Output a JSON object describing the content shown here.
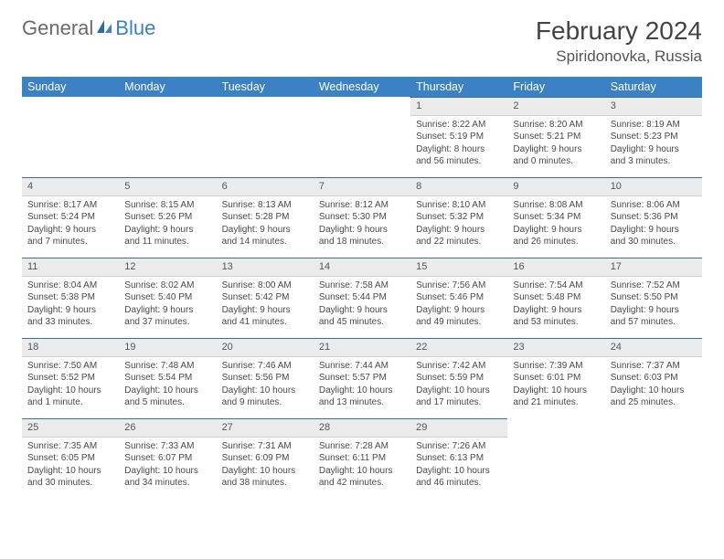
{
  "brand": {
    "part1": "General",
    "part2": "Blue"
  },
  "title": "February 2024",
  "location": "Spiridonovka, Russia",
  "colors": {
    "header_bg": "#3b82c4",
    "header_text": "#ffffff",
    "daynum_bg": "#ebebeb",
    "daynum_border_top": "#3b6fa0",
    "body_text": "#4a4a4a"
  },
  "weekdays": [
    "Sunday",
    "Monday",
    "Tuesday",
    "Wednesday",
    "Thursday",
    "Friday",
    "Saturday"
  ],
  "weeks": [
    [
      null,
      null,
      null,
      null,
      {
        "n": "1",
        "sunrise": "Sunrise: 8:22 AM",
        "sunset": "Sunset: 5:19 PM",
        "day1": "Daylight: 8 hours",
        "day2": "and 56 minutes."
      },
      {
        "n": "2",
        "sunrise": "Sunrise: 8:20 AM",
        "sunset": "Sunset: 5:21 PM",
        "day1": "Daylight: 9 hours",
        "day2": "and 0 minutes."
      },
      {
        "n": "3",
        "sunrise": "Sunrise: 8:19 AM",
        "sunset": "Sunset: 5:23 PM",
        "day1": "Daylight: 9 hours",
        "day2": "and 3 minutes."
      }
    ],
    [
      {
        "n": "4",
        "sunrise": "Sunrise: 8:17 AM",
        "sunset": "Sunset: 5:24 PM",
        "day1": "Daylight: 9 hours",
        "day2": "and 7 minutes."
      },
      {
        "n": "5",
        "sunrise": "Sunrise: 8:15 AM",
        "sunset": "Sunset: 5:26 PM",
        "day1": "Daylight: 9 hours",
        "day2": "and 11 minutes."
      },
      {
        "n": "6",
        "sunrise": "Sunrise: 8:13 AM",
        "sunset": "Sunset: 5:28 PM",
        "day1": "Daylight: 9 hours",
        "day2": "and 14 minutes."
      },
      {
        "n": "7",
        "sunrise": "Sunrise: 8:12 AM",
        "sunset": "Sunset: 5:30 PM",
        "day1": "Daylight: 9 hours",
        "day2": "and 18 minutes."
      },
      {
        "n": "8",
        "sunrise": "Sunrise: 8:10 AM",
        "sunset": "Sunset: 5:32 PM",
        "day1": "Daylight: 9 hours",
        "day2": "and 22 minutes."
      },
      {
        "n": "9",
        "sunrise": "Sunrise: 8:08 AM",
        "sunset": "Sunset: 5:34 PM",
        "day1": "Daylight: 9 hours",
        "day2": "and 26 minutes."
      },
      {
        "n": "10",
        "sunrise": "Sunrise: 8:06 AM",
        "sunset": "Sunset: 5:36 PM",
        "day1": "Daylight: 9 hours",
        "day2": "and 30 minutes."
      }
    ],
    [
      {
        "n": "11",
        "sunrise": "Sunrise: 8:04 AM",
        "sunset": "Sunset: 5:38 PM",
        "day1": "Daylight: 9 hours",
        "day2": "and 33 minutes."
      },
      {
        "n": "12",
        "sunrise": "Sunrise: 8:02 AM",
        "sunset": "Sunset: 5:40 PM",
        "day1": "Daylight: 9 hours",
        "day2": "and 37 minutes."
      },
      {
        "n": "13",
        "sunrise": "Sunrise: 8:00 AM",
        "sunset": "Sunset: 5:42 PM",
        "day1": "Daylight: 9 hours",
        "day2": "and 41 minutes."
      },
      {
        "n": "14",
        "sunrise": "Sunrise: 7:58 AM",
        "sunset": "Sunset: 5:44 PM",
        "day1": "Daylight: 9 hours",
        "day2": "and 45 minutes."
      },
      {
        "n": "15",
        "sunrise": "Sunrise: 7:56 AM",
        "sunset": "Sunset: 5:46 PM",
        "day1": "Daylight: 9 hours",
        "day2": "and 49 minutes."
      },
      {
        "n": "16",
        "sunrise": "Sunrise: 7:54 AM",
        "sunset": "Sunset: 5:48 PM",
        "day1": "Daylight: 9 hours",
        "day2": "and 53 minutes."
      },
      {
        "n": "17",
        "sunrise": "Sunrise: 7:52 AM",
        "sunset": "Sunset: 5:50 PM",
        "day1": "Daylight: 9 hours",
        "day2": "and 57 minutes."
      }
    ],
    [
      {
        "n": "18",
        "sunrise": "Sunrise: 7:50 AM",
        "sunset": "Sunset: 5:52 PM",
        "day1": "Daylight: 10 hours",
        "day2": "and 1 minute."
      },
      {
        "n": "19",
        "sunrise": "Sunrise: 7:48 AM",
        "sunset": "Sunset: 5:54 PM",
        "day1": "Daylight: 10 hours",
        "day2": "and 5 minutes."
      },
      {
        "n": "20",
        "sunrise": "Sunrise: 7:46 AM",
        "sunset": "Sunset: 5:56 PM",
        "day1": "Daylight: 10 hours",
        "day2": "and 9 minutes."
      },
      {
        "n": "21",
        "sunrise": "Sunrise: 7:44 AM",
        "sunset": "Sunset: 5:57 PM",
        "day1": "Daylight: 10 hours",
        "day2": "and 13 minutes."
      },
      {
        "n": "22",
        "sunrise": "Sunrise: 7:42 AM",
        "sunset": "Sunset: 5:59 PM",
        "day1": "Daylight: 10 hours",
        "day2": "and 17 minutes."
      },
      {
        "n": "23",
        "sunrise": "Sunrise: 7:39 AM",
        "sunset": "Sunset: 6:01 PM",
        "day1": "Daylight: 10 hours",
        "day2": "and 21 minutes."
      },
      {
        "n": "24",
        "sunrise": "Sunrise: 7:37 AM",
        "sunset": "Sunset: 6:03 PM",
        "day1": "Daylight: 10 hours",
        "day2": "and 25 minutes."
      }
    ],
    [
      {
        "n": "25",
        "sunrise": "Sunrise: 7:35 AM",
        "sunset": "Sunset: 6:05 PM",
        "day1": "Daylight: 10 hours",
        "day2": "and 30 minutes."
      },
      {
        "n": "26",
        "sunrise": "Sunrise: 7:33 AM",
        "sunset": "Sunset: 6:07 PM",
        "day1": "Daylight: 10 hours",
        "day2": "and 34 minutes."
      },
      {
        "n": "27",
        "sunrise": "Sunrise: 7:31 AM",
        "sunset": "Sunset: 6:09 PM",
        "day1": "Daylight: 10 hours",
        "day2": "and 38 minutes."
      },
      {
        "n": "28",
        "sunrise": "Sunrise: 7:28 AM",
        "sunset": "Sunset: 6:11 PM",
        "day1": "Daylight: 10 hours",
        "day2": "and 42 minutes."
      },
      {
        "n": "29",
        "sunrise": "Sunrise: 7:26 AM",
        "sunset": "Sunset: 6:13 PM",
        "day1": "Daylight: 10 hours",
        "day2": "and 46 minutes."
      },
      null,
      null
    ]
  ]
}
